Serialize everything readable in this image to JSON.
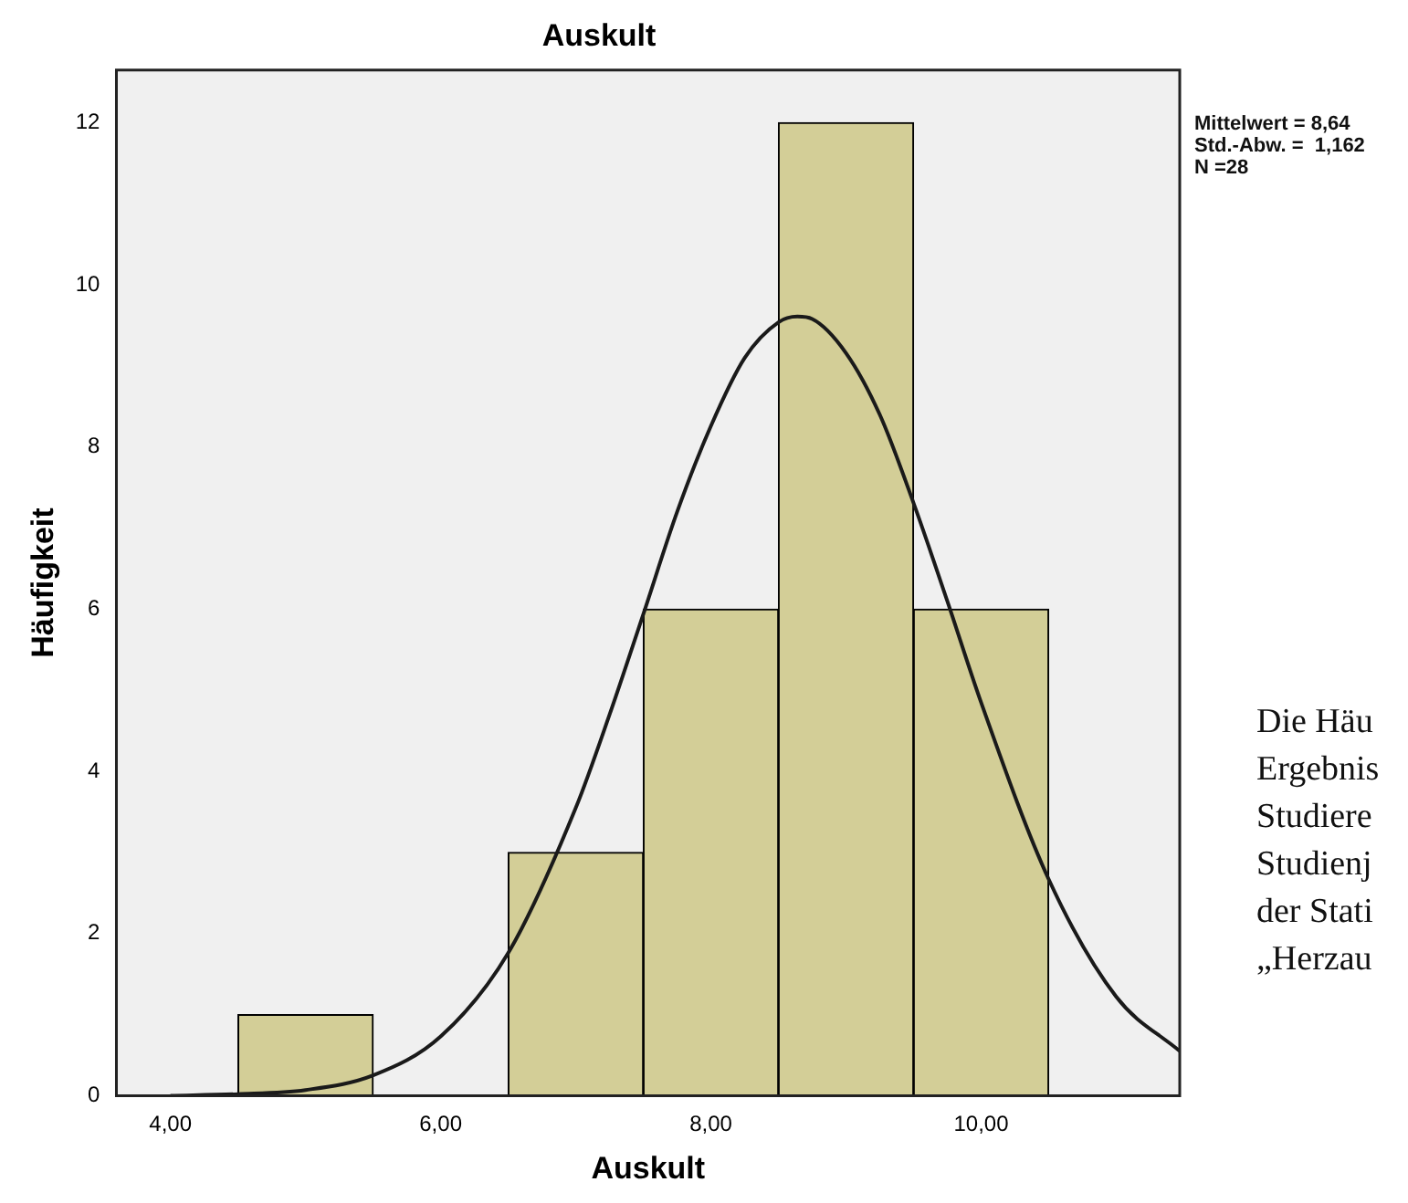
{
  "chart_data": {
    "type": "histogram",
    "title": "Auskult",
    "xlabel": "Auskult",
    "ylabel": "Häufigkeit",
    "bins": [
      4.5,
      5.5,
      6.5,
      7.5,
      8.5,
      9.5,
      10.5
    ],
    "values": [
      1,
      0,
      3,
      6,
      12,
      6
    ],
    "color": "#d3ce97",
    "series": [
      {
        "type": "line",
        "color": "#1a1a1a",
        "x": [
          4,
          4.5,
          5,
          5.5,
          6,
          6.5,
          7,
          7.25,
          7.5,
          7.75,
          8,
          8.25,
          8.5,
          8.64,
          8.75,
          9,
          9.25,
          9.5,
          9.75,
          10,
          10.5,
          11,
          11.47
        ],
        "values": [
          0,
          0.02,
          0.07,
          0.25,
          0.73,
          1.76,
          3.55,
          4.7,
          5.94,
          7.2,
          8.26,
          9.1,
          9.54,
          9.61,
          9.58,
          9.16,
          8.4,
          7.31,
          6.1,
          4.85,
          2.67,
          1.22,
          0.55
        ]
      }
    ],
    "xlim": [
      3.6,
      11.47
    ],
    "xticks": [
      {
        "value": 4,
        "label": "4,00"
      },
      {
        "value": 6,
        "label": "6,00"
      },
      {
        "value": 8,
        "label": "8,00"
      },
      {
        "value": 10,
        "label": "10,00"
      }
    ],
    "ylim": [
      0,
      12.65
    ],
    "yticks": [
      0,
      2,
      4,
      6,
      8,
      10,
      12
    ],
    "grid": false,
    "legend": false,
    "marker": "none",
    "annotations": [
      "Mittelwert = 8,64\nStd.-Abw. =  1,162\nN =28",
      "Die Häu\nErgebnis\nStudiere\nStudienj\nder Stati\n„Herzau"
    ]
  }
}
